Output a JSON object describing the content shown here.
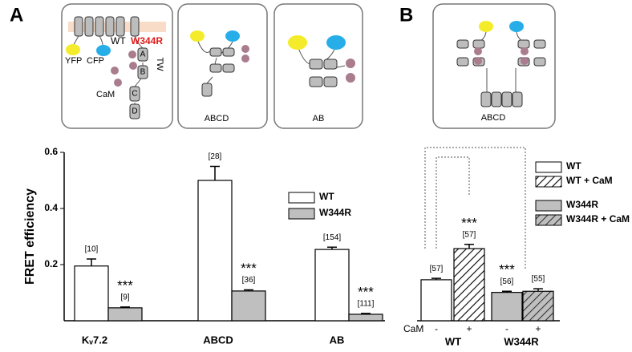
{
  "panels": [
    "A",
    "B"
  ],
  "diagrams": {
    "box1": {
      "wt": "WT",
      "mutant": "W344R",
      "yfp": "YFP",
      "cfp": "CFP",
      "cam": "CaM",
      "helices": [
        "A",
        "B",
        "C",
        "D"
      ],
      "tw": "TW"
    },
    "box2": "ABCD",
    "box3": "AB",
    "box4": "ABCD"
  },
  "chart_data": [
    {
      "type": "bar",
      "ylabel": "FRET efficiency",
      "categories": [
        "Kᵥ7.2",
        "ABCD",
        "AB"
      ],
      "ylim": [
        0,
        0.6
      ],
      "yticks": [
        0.2,
        0.4,
        0.6
      ],
      "legend": "center right",
      "series": [
        {
          "name": "WT",
          "color": "#ffffff",
          "hatch": false,
          "values": [
            0.195,
            0.5,
            0.254
          ],
          "errors": [
            0.025,
            0.05,
            0.008
          ],
          "n": [
            "[10]",
            "[28]",
            "[154]"
          ]
        },
        {
          "name": "W344R",
          "color": "#bfbfbf",
          "hatch": false,
          "values": [
            0.046,
            0.106,
            0.023
          ],
          "errors": [
            0.003,
            0.004,
            0.003
          ],
          "n": [
            "[9]",
            "[36]",
            "[111]"
          ],
          "significance": [
            "***",
            "***",
            "***"
          ]
        }
      ]
    },
    {
      "type": "bar",
      "categories": [
        "WT",
        "W344R"
      ],
      "ylim": [
        0,
        0.6
      ],
      "legend": "upper right",
      "cam_label": "CaM",
      "cam_marks": [
        "-",
        "+",
        "-",
        "+"
      ],
      "series": [
        {
          "name": "WT",
          "color": "#ffffff",
          "hatch": false,
          "values": [
            0.146,
            null
          ],
          "errors": [
            0.005,
            null
          ],
          "n": [
            "[57]",
            null
          ]
        },
        {
          "name": "WT + CaM",
          "color": "#ffffff",
          "hatch": true,
          "values": [
            0.257,
            null
          ],
          "errors": [
            0.015,
            null
          ],
          "n": [
            "[57]",
            null
          ],
          "significance": [
            "***",
            null
          ]
        },
        {
          "name": "W344R",
          "color": "#bfbfbf",
          "hatch": false,
          "values": [
            null,
            0.101
          ],
          "errors": [
            null,
            0.004
          ],
          "n": [
            null,
            "[56]"
          ],
          "significance": [
            null,
            "***"
          ]
        },
        {
          "name": "W344R + CaM",
          "color": "#bfbfbf",
          "hatch": true,
          "values": [
            null,
            0.105
          ],
          "errors": [
            null,
            0.009
          ],
          "n": [
            null,
            "[55]"
          ]
        }
      ]
    }
  ]
}
